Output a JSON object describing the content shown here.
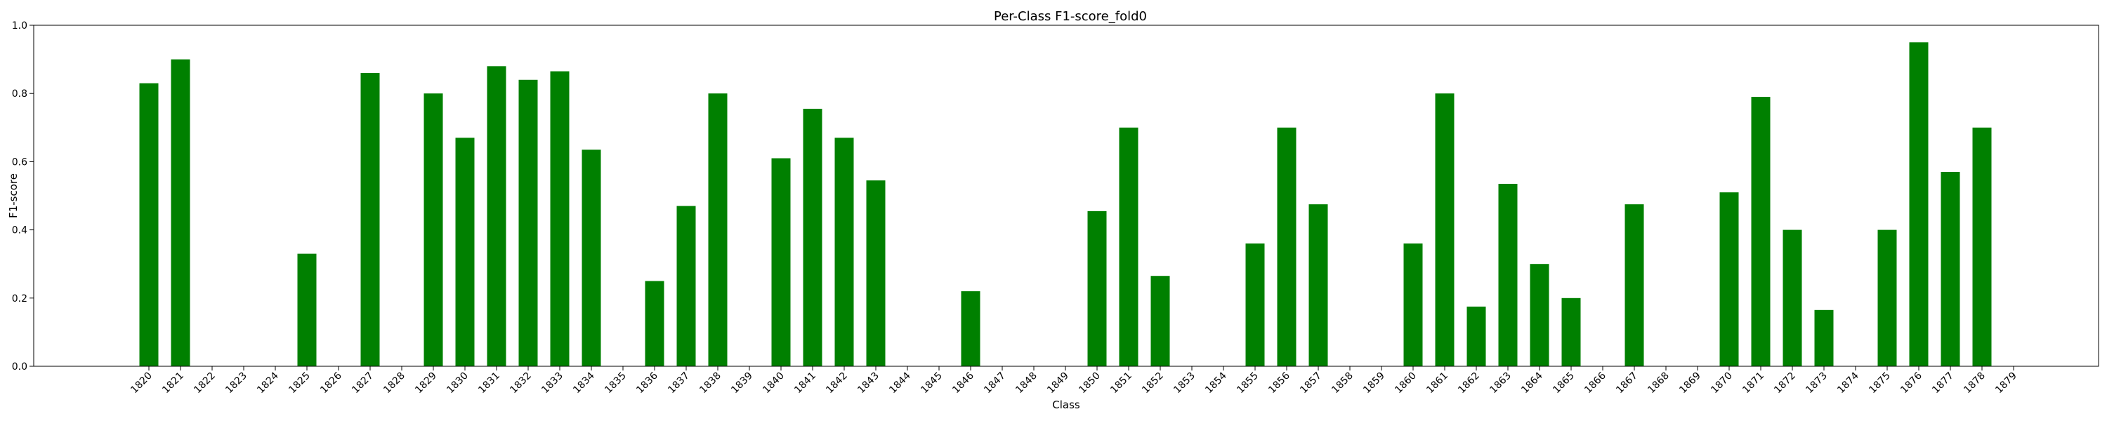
{
  "chart_data": {
    "type": "bar",
    "title": "Per-Class F1-score_fold0",
    "xlabel": "Class",
    "ylabel": "F1-score",
    "ylim": [
      0,
      1.0
    ],
    "yticks": [
      0.0,
      0.2,
      0.4,
      0.6,
      0.8,
      1.0
    ],
    "grid": false,
    "bar_color": "#008000",
    "categories": [
      "1820",
      "1821",
      "1822",
      "1823",
      "1824",
      "1825",
      "1826",
      "1827",
      "1828",
      "1829",
      "1830",
      "1831",
      "1832",
      "1833",
      "1834",
      "1835",
      "1836",
      "1837",
      "1838",
      "1839",
      "1840",
      "1841",
      "1842",
      "1843",
      "1844",
      "1845",
      "1846",
      "1847",
      "1848",
      "1849",
      "1850",
      "1851",
      "1852",
      "1853",
      "1854",
      "1855",
      "1856",
      "1857",
      "1858",
      "1859",
      "1860",
      "1861",
      "1862",
      "1863",
      "1864",
      "1865",
      "1866",
      "1867",
      "1868",
      "1869",
      "1870",
      "1871",
      "1872",
      "1873",
      "1874",
      "1875",
      "1876",
      "1877",
      "1878",
      "1879"
    ],
    "values": [
      0.83,
      0.9,
      0,
      0,
      0,
      0.33,
      0,
      0.86,
      0,
      0.8,
      0.67,
      0.88,
      0.84,
      0.865,
      0.635,
      0,
      0.25,
      0.47,
      0.8,
      0,
      0.61,
      0.755,
      0.67,
      0.545,
      0,
      0,
      0.22,
      0,
      0,
      0,
      0.455,
      0.7,
      0.265,
      0,
      0,
      0.36,
      0.7,
      0.475,
      0,
      0,
      0.36,
      0.8,
      0.175,
      0.535,
      0.3,
      0.2,
      0,
      0.475,
      0,
      0,
      0.51,
      0.79,
      0.4,
      0.165,
      0,
      0.4,
      0.95,
      0.57,
      0.7,
      0
    ]
  }
}
